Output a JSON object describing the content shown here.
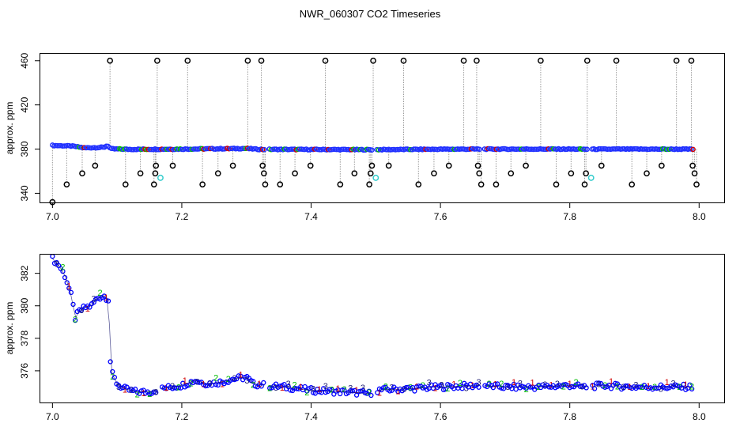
{
  "title": "NWR_060307  CO2 Timeseries",
  "chart_data": [
    {
      "type": "scatter",
      "panel": "top",
      "ylabel": "approx. ppm",
      "xlabel": "",
      "xlim": [
        6.98,
        8.04
      ],
      "ylim": [
        331,
        467
      ],
      "x_ticks": [
        "7.0",
        "7.2",
        "7.4",
        "7.6",
        "7.8",
        "8.0"
      ],
      "y_ticks": [
        "340",
        "380",
        "420",
        "460"
      ],
      "grid": false,
      "baseline": [
        [
          7.0,
          378.0
        ],
        [
          7.03,
          377.5
        ],
        [
          7.05,
          376.0
        ],
        [
          7.08,
          376.5
        ],
        [
          7.085,
          378.0
        ],
        [
          7.09,
          375.2
        ],
        [
          7.12,
          374.8
        ],
        [
          7.2,
          375.0
        ],
        [
          7.3,
          375.5
        ],
        [
          7.32,
          374.8
        ],
        [
          7.45,
          374.6
        ],
        [
          7.49,
          374.5
        ],
        [
          7.6,
          374.9
        ],
        [
          7.66,
          375.0
        ],
        [
          7.8,
          375.0
        ],
        [
          7.82,
          374.9
        ],
        [
          7.9,
          375.0
        ],
        [
          7.99,
          374.9
        ]
      ],
      "gaps": [
        [
          7.328,
          7.333
        ],
        [
          7.495,
          7.5
        ],
        [
          7.662,
          7.667
        ],
        [
          7.828,
          7.833
        ]
      ],
      "spikes": [
        {
          "x": 7.0,
          "y": 332
        },
        {
          "x": 7.022,
          "y": 348
        },
        {
          "x": 7.046,
          "y": 358
        },
        {
          "x": 7.066,
          "y": 365
        },
        {
          "x": 7.089,
          "y": 460
        },
        {
          "x": 7.113,
          "y": 348
        },
        {
          "x": 7.136,
          "y": 358
        },
        {
          "x": 7.157,
          "y": 348
        },
        {
          "x": 7.159,
          "y": 358
        },
        {
          "x": 7.16,
          "y": 365
        },
        {
          "x": 7.162,
          "y": 460
        },
        {
          "x": 7.186,
          "y": 365
        },
        {
          "x": 7.209,
          "y": 460
        },
        {
          "x": 7.232,
          "y": 348
        },
        {
          "x": 7.256,
          "y": 358
        },
        {
          "x": 7.279,
          "y": 365
        },
        {
          "x": 7.302,
          "y": 460
        },
        {
          "x": 7.323,
          "y": 460
        },
        {
          "x": 7.325,
          "y": 365
        },
        {
          "x": 7.327,
          "y": 358
        },
        {
          "x": 7.329,
          "y": 348
        },
        {
          "x": 7.352,
          "y": 348
        },
        {
          "x": 7.375,
          "y": 358
        },
        {
          "x": 7.399,
          "y": 365
        },
        {
          "x": 7.422,
          "y": 460
        },
        {
          "x": 7.445,
          "y": 348
        },
        {
          "x": 7.467,
          "y": 358
        },
        {
          "x": 7.49,
          "y": 348
        },
        {
          "x": 7.492,
          "y": 358
        },
        {
          "x": 7.494,
          "y": 365
        },
        {
          "x": 7.496,
          "y": 460
        },
        {
          "x": 7.52,
          "y": 365
        },
        {
          "x": 7.543,
          "y": 460
        },
        {
          "x": 7.566,
          "y": 348
        },
        {
          "x": 7.59,
          "y": 358
        },
        {
          "x": 7.613,
          "y": 365
        },
        {
          "x": 7.636,
          "y": 460
        },
        {
          "x": 7.656,
          "y": 460
        },
        {
          "x": 7.658,
          "y": 365
        },
        {
          "x": 7.66,
          "y": 358
        },
        {
          "x": 7.663,
          "y": 348
        },
        {
          "x": 7.686,
          "y": 348
        },
        {
          "x": 7.709,
          "y": 358
        },
        {
          "x": 7.732,
          "y": 365
        },
        {
          "x": 7.755,
          "y": 460
        },
        {
          "x": 7.779,
          "y": 348
        },
        {
          "x": 7.802,
          "y": 358
        },
        {
          "x": 7.823,
          "y": 348
        },
        {
          "x": 7.825,
          "y": 358
        },
        {
          "x": 7.827,
          "y": 460
        },
        {
          "x": 7.849,
          "y": 365
        },
        {
          "x": 7.872,
          "y": 460
        },
        {
          "x": 7.896,
          "y": 348
        },
        {
          "x": 7.919,
          "y": 358
        },
        {
          "x": 7.942,
          "y": 365
        },
        {
          "x": 7.965,
          "y": 460
        },
        {
          "x": 7.988,
          "y": 460
        },
        {
          "x": 7.99,
          "y": 365
        },
        {
          "x": 7.993,
          "y": 358
        },
        {
          "x": 7.996,
          "y": 348
        }
      ],
      "cyan_points": [
        {
          "x": 7.167,
          "y": 354
        },
        {
          "x": 7.5,
          "y": 354
        },
        {
          "x": 7.833,
          "y": 354
        }
      ]
    },
    {
      "type": "scatter",
      "panel": "bottom",
      "ylabel": "approx. ppm",
      "xlabel": "",
      "xlim": [
        6.98,
        8.04
      ],
      "ylim": [
        374.0,
        383.2
      ],
      "x_ticks": [
        "7.0",
        "7.2",
        "7.4",
        "7.6",
        "7.8",
        "8.0"
      ],
      "y_ticks": [
        "376",
        "378",
        "380",
        "382"
      ],
      "grid": false,
      "series_markers": [
        {
          "symbol": "o",
          "color": "#0000ff"
        },
        {
          "symbol": "1",
          "color": "#d00000"
        },
        {
          "symbol": "2",
          "color": "#00bb00"
        },
        {
          "symbol": "3",
          "color": "#1a1a70"
        }
      ],
      "profile": [
        [
          7.0,
          382.9
        ],
        [
          7.01,
          382.5
        ],
        [
          7.02,
          381.8
        ],
        [
          7.03,
          380.5
        ],
        [
          7.035,
          379.2
        ],
        [
          7.04,
          379.6
        ],
        [
          7.05,
          379.9
        ],
        [
          7.06,
          380.0
        ],
        [
          7.07,
          380.5
        ],
        [
          7.08,
          380.6
        ],
        [
          7.087,
          380.4
        ],
        [
          7.09,
          376.0
        ],
        [
          7.1,
          375.2
        ],
        [
          7.11,
          374.9
        ],
        [
          7.13,
          374.7
        ],
        [
          7.15,
          374.7
        ],
        [
          7.17,
          374.9
        ],
        [
          7.2,
          375.1
        ],
        [
          7.22,
          375.4
        ],
        [
          7.24,
          375.2
        ],
        [
          7.26,
          375.3
        ],
        [
          7.28,
          375.5
        ],
        [
          7.3,
          375.6
        ],
        [
          7.31,
          375.2
        ],
        [
          7.33,
          375.1
        ],
        [
          7.36,
          375.0
        ],
        [
          7.4,
          374.8
        ],
        [
          7.45,
          374.7
        ],
        [
          7.49,
          374.6
        ],
        [
          7.5,
          374.8
        ],
        [
          7.55,
          374.9
        ],
        [
          7.6,
          375.0
        ],
        [
          7.66,
          375.1
        ],
        [
          7.7,
          375.0
        ],
        [
          7.75,
          375.0
        ],
        [
          7.8,
          375.1
        ],
        [
          7.82,
          375.0
        ],
        [
          7.85,
          375.1
        ],
        [
          7.9,
          375.0
        ],
        [
          7.99,
          375.0
        ]
      ],
      "gaps": [
        [
          7.162,
          7.167
        ],
        [
          7.328,
          7.333
        ],
        [
          7.495,
          7.5
        ],
        [
          7.662,
          7.667
        ],
        [
          7.828,
          7.833
        ]
      ]
    }
  ]
}
